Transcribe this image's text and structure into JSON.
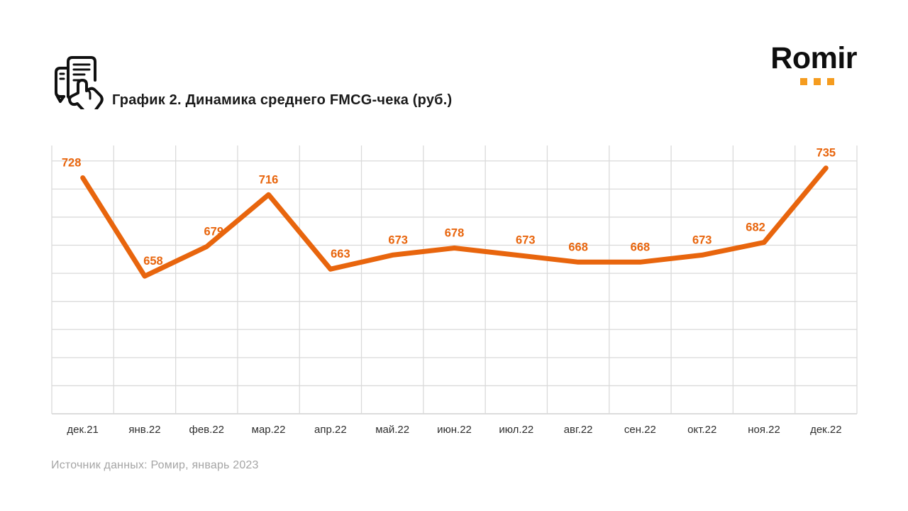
{
  "header": {
    "icon_name": "receipt-in-hand-icon",
    "title": "График 2. Динамика среднего FMCG-чека (руб.)",
    "logo": {
      "text": "Romir",
      "text_color": "#0e0e0e",
      "dots_color": "#f59c1f",
      "dots_count": 3
    }
  },
  "chart_data": {
    "type": "line",
    "title": "График 2. Динамика среднего FMCG-чека (руб.)",
    "categories": [
      "дек.21",
      "янв.22",
      "фев.22",
      "мар.22",
      "апр.22",
      "май.22",
      "июн.22",
      "июл.22",
      "авг.22",
      "сен.22",
      "окт.22",
      "ноя.22",
      "дек.22"
    ],
    "values": [
      728,
      658,
      679,
      716,
      663,
      673,
      678,
      673,
      668,
      668,
      673,
      682,
      735
    ],
    "data_labels": true,
    "label_dx": [
      -16,
      12,
      10,
      0,
      14,
      8,
      0,
      13,
      0,
      0,
      0,
      -12,
      0
    ],
    "ylim": [
      560,
      751
    ],
    "y_grid_step": 20,
    "grid": true,
    "legend": "none",
    "xlabel": "",
    "ylabel": "",
    "line_color": "#e8650d",
    "label_color": "#e8650d",
    "grid_color": "#dadada",
    "axis_color": "#c8c8c8",
    "tick_color": "#2e2e2e"
  },
  "footer": {
    "source": "Источник данных: Ромир, январь 2023"
  }
}
